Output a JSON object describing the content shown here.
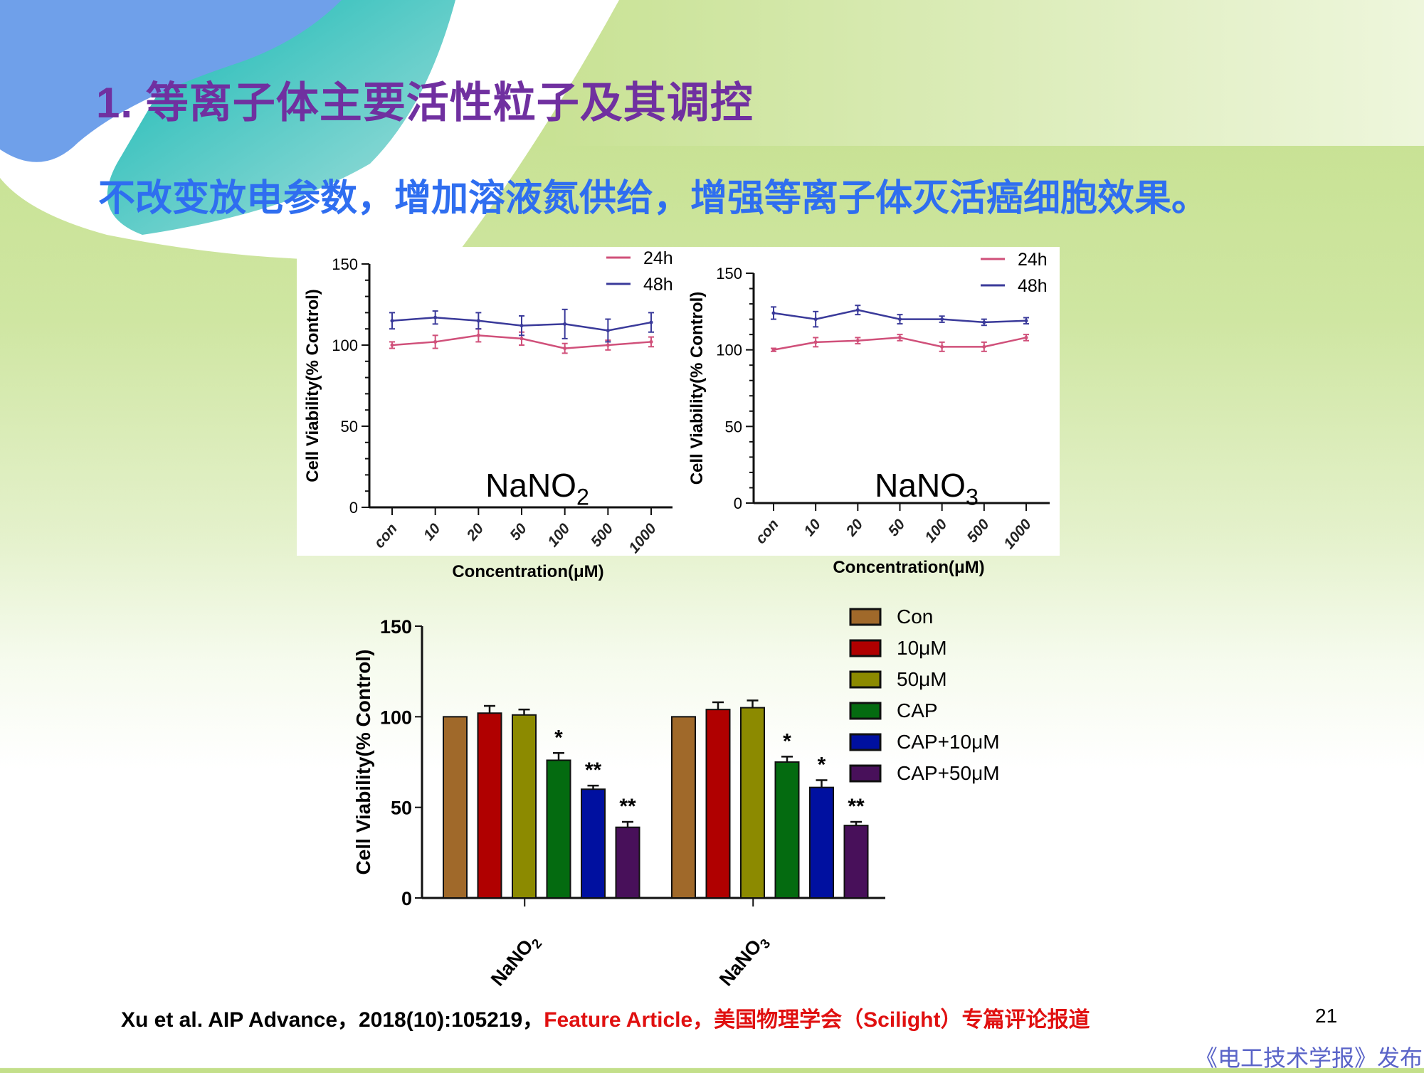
{
  "slide": {
    "title": "1. 等离子体主要活性粒子及其调控",
    "subtitle": "不改变放电参数，增加溶液氮供给，增强等离子体灭活癌细胞效果。",
    "citation_black": "Xu et al. AIP Advance，2018(10):105219，",
    "citation_red": "Feature Article，美国物理学会（Scilight）专篇评论报道",
    "page_number": "21",
    "watermark": "《电工技术学报》发布",
    "colors": {
      "title": "#7030a0",
      "subtitle": "#2f6ef0",
      "citation_red": "#e01010"
    }
  },
  "chart_data": [
    {
      "type": "line",
      "annotation": "NaNO2",
      "xlabel": "Concentration(μM)",
      "ylabel": "Cell Viability(% Control)",
      "categories": [
        "con",
        "10",
        "20",
        "50",
        "100",
        "500",
        "1000"
      ],
      "ylim": [
        0,
        150
      ],
      "yticks": [
        0,
        50,
        100,
        150
      ],
      "legend_position": "top-right",
      "series": [
        {
          "name": "24h",
          "color": "#d0507a",
          "values": [
            100,
            102,
            106,
            104,
            98,
            100,
            102
          ],
          "errors": [
            2,
            4,
            4,
            4,
            3,
            3,
            3
          ]
        },
        {
          "name": "48h",
          "color": "#3a3a9a",
          "values": [
            115,
            117,
            115,
            112,
            113,
            109,
            114
          ],
          "errors": [
            5,
            4,
            5,
            6,
            9,
            7,
            6
          ]
        }
      ]
    },
    {
      "type": "line",
      "annotation": "NaNO3",
      "xlabel": "Concentration(μM)",
      "ylabel": "Cell Viability(% Control)",
      "categories": [
        "con",
        "10",
        "20",
        "50",
        "100",
        "500",
        "1000"
      ],
      "ylim": [
        0,
        150
      ],
      "yticks": [
        0,
        50,
        100,
        150
      ],
      "legend_position": "top-right",
      "series": [
        {
          "name": "24h",
          "color": "#d0507a",
          "values": [
            100,
            105,
            106,
            108,
            102,
            102,
            108
          ],
          "errors": [
            1,
            3,
            2,
            2,
            3,
            3,
            2
          ]
        },
        {
          "name": "48h",
          "color": "#3a3a9a",
          "values": [
            124,
            120,
            126,
            120,
            120,
            118,
            119
          ],
          "errors": [
            4,
            5,
            3,
            3,
            2,
            2,
            2
          ]
        }
      ]
    },
    {
      "type": "bar",
      "xlabel": "",
      "ylabel": "Cell Viability(% Control)",
      "categories": [
        "NaNO2",
        "NaNO3"
      ],
      "ylim": [
        0,
        150
      ],
      "yticks": [
        0,
        50,
        100,
        150
      ],
      "legend_position": "right",
      "series": [
        {
          "name": "Con",
          "color": "#a0692a",
          "values": [
            100,
            100
          ],
          "errors": [
            0,
            0
          ],
          "marks": [
            "",
            ""
          ]
        },
        {
          "name": "10μM",
          "color": "#b00000",
          "values": [
            102,
            104
          ],
          "errors": [
            4,
            4
          ],
          "marks": [
            "",
            ""
          ]
        },
        {
          "name": "50μM",
          "color": "#8c8a00",
          "values": [
            101,
            105
          ],
          "errors": [
            3,
            4
          ],
          "marks": [
            "",
            ""
          ]
        },
        {
          "name": "CAP",
          "color": "#046b10",
          "values": [
            76,
            75
          ],
          "errors": [
            4,
            3
          ],
          "marks": [
            "*",
            "*"
          ]
        },
        {
          "name": "CAP+10μM",
          "color": "#0010a0",
          "values": [
            60,
            61
          ],
          "errors": [
            2,
            4
          ],
          "marks": [
            "**",
            "*"
          ]
        },
        {
          "name": "CAP+50μM",
          "color": "#48105a",
          "values": [
            39,
            40
          ],
          "errors": [
            3,
            2
          ],
          "marks": [
            "**",
            "**"
          ]
        }
      ]
    }
  ]
}
